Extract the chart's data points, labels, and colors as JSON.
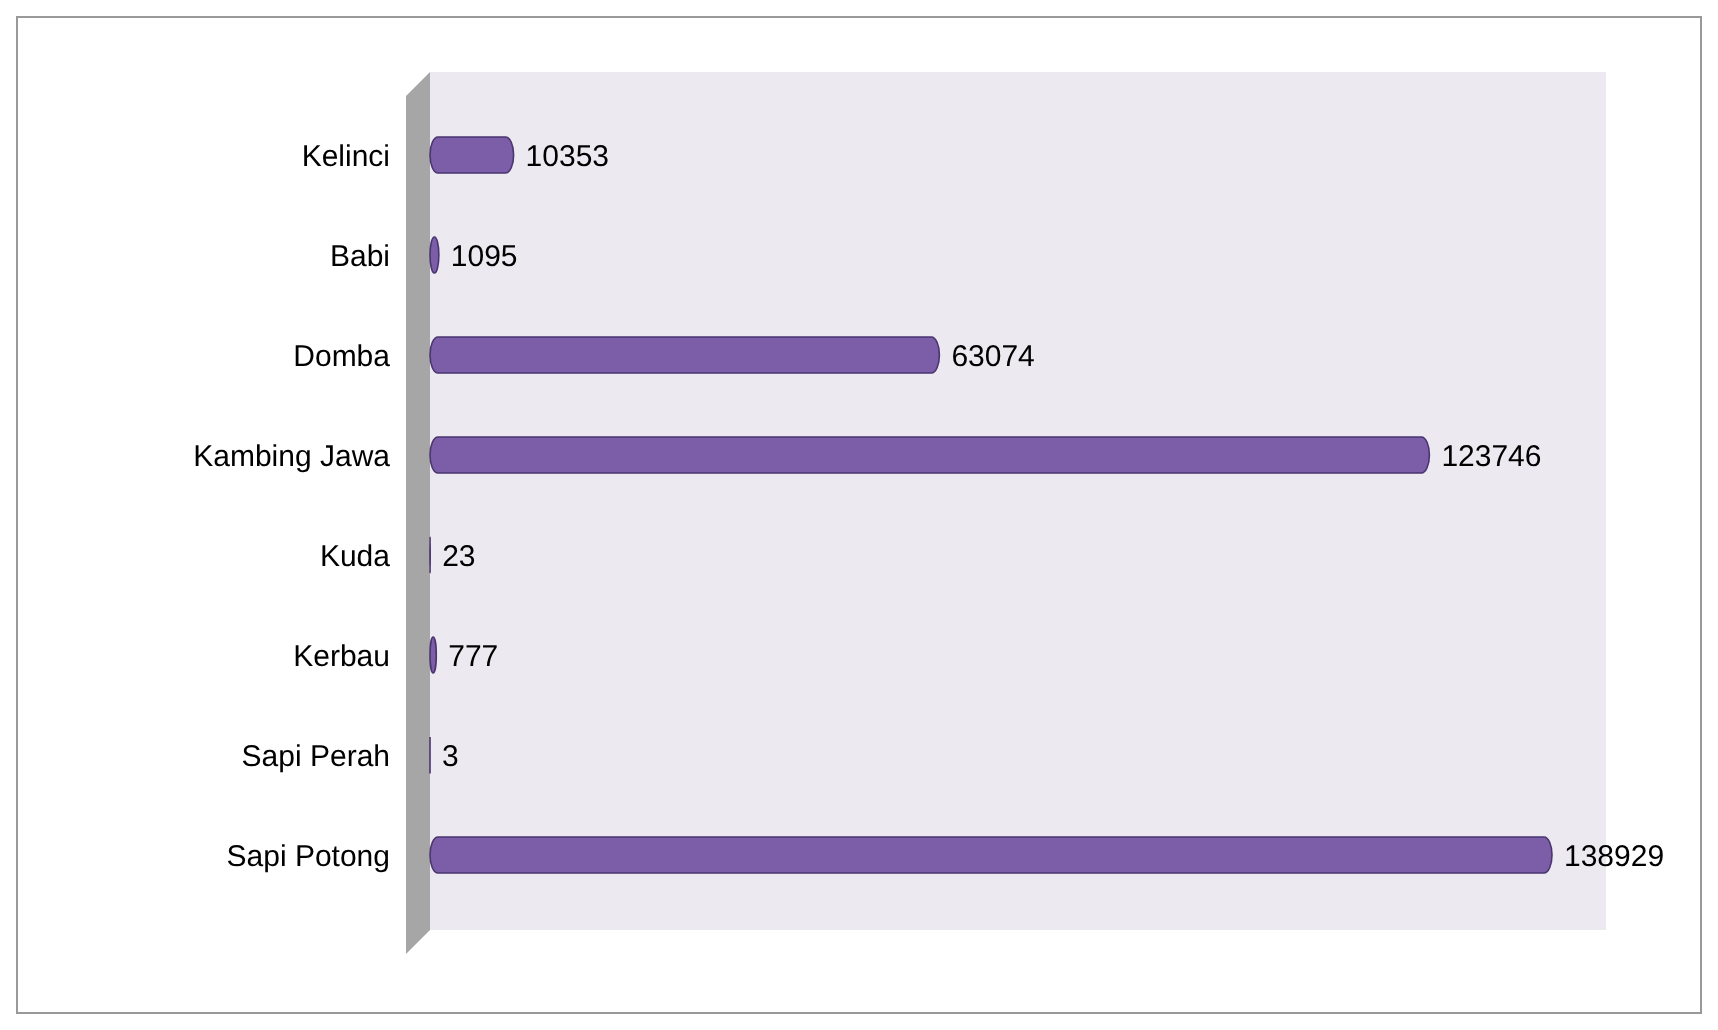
{
  "chart_data": {
    "type": "bar",
    "orientation": "horizontal",
    "categories": [
      "Kelinci",
      "Babi",
      "Domba",
      "Kambing Jawa",
      "Kuda",
      "Kerbau",
      "Sapi Perah",
      "Sapi Potong"
    ],
    "values": [
      10353,
      1095,
      63074,
      123746,
      23,
      777,
      3,
      138929
    ],
    "color": "#7b5ea7",
    "data_labels": true
  }
}
